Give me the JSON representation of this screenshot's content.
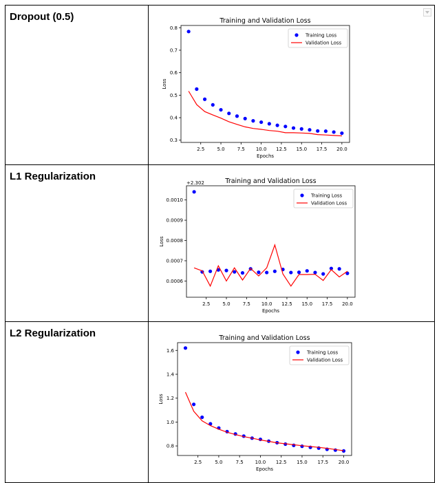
{
  "rows": [
    {
      "label": "Dropout (0.5)"
    },
    {
      "label": "L1 Regularization"
    },
    {
      "label": "L2 Regularization"
    }
  ],
  "chart_data": [
    {
      "type": "line",
      "title": "Training and Validation Loss",
      "xlabel": "Epochs",
      "ylabel": "Loss",
      "offset_label": "",
      "xlim": [
        0.05,
        20.95
      ],
      "ylim": [
        0.29,
        0.81
      ],
      "xticks": [
        2.5,
        5.0,
        7.5,
        10.0,
        12.5,
        15.0,
        17.5,
        20.0
      ],
      "xtick_labels": [
        "2.5",
        "5.0",
        "7.5",
        "10.0",
        "12.5",
        "15.0",
        "17.5",
        "20.0"
      ],
      "yticks": [
        0.3,
        0.4,
        0.5,
        0.6,
        0.7,
        0.8
      ],
      "ytick_labels": [
        "0.3",
        "0.4",
        "0.5",
        "0.6",
        "0.7",
        "0.8"
      ],
      "legend_position": "top-right",
      "series": [
        {
          "name": "Training Loss",
          "style": "dots",
          "color": "#0000ff",
          "x": [
            1,
            2,
            3,
            4,
            5,
            6,
            7,
            8,
            9,
            10,
            11,
            12,
            13,
            14,
            15,
            16,
            17,
            18,
            19,
            20
          ],
          "y": [
            0.783,
            0.527,
            0.482,
            0.457,
            0.435,
            0.419,
            0.407,
            0.396,
            0.386,
            0.38,
            0.373,
            0.366,
            0.361,
            0.354,
            0.35,
            0.346,
            0.341,
            0.34,
            0.336,
            0.331
          ]
        },
        {
          "name": "Validation Loss",
          "style": "line",
          "color": "#ff0000",
          "x": [
            1,
            2,
            3,
            4,
            5,
            6,
            7,
            8,
            9,
            10,
            11,
            12,
            13,
            14,
            15,
            16,
            17,
            18,
            19,
            20
          ],
          "y": [
            0.518,
            0.458,
            0.427,
            0.412,
            0.398,
            0.382,
            0.37,
            0.359,
            0.352,
            0.348,
            0.343,
            0.34,
            0.333,
            0.333,
            0.332,
            0.33,
            0.325,
            0.323,
            0.321,
            0.319
          ]
        }
      ]
    },
    {
      "type": "line",
      "title": "Training and Validation Loss",
      "xlabel": "Epochs",
      "ylabel": "Loss",
      "offset_label": "+2.302",
      "xlim": [
        0.05,
        20.95
      ],
      "ylim": [
        0.00052,
        0.00107
      ],
      "xticks": [
        2.5,
        5.0,
        7.5,
        10.0,
        12.5,
        15.0,
        17.5,
        20.0
      ],
      "xtick_labels": [
        "2.5",
        "5.0",
        "7.5",
        "10.0",
        "12.5",
        "15.0",
        "17.5",
        "20.0"
      ],
      "yticks": [
        0.0006,
        0.0007,
        0.0008,
        0.0009,
        0.001
      ],
      "ytick_labels": [
        "0.0006",
        "0.0007",
        "0.0008",
        "0.0009",
        "0.0010"
      ],
      "legend_position": "top-right",
      "series": [
        {
          "name": "Training Loss",
          "style": "dots",
          "color": "#0000ff",
          "x": [
            1,
            2,
            3,
            4,
            5,
            6,
            7,
            8,
            9,
            10,
            11,
            12,
            13,
            14,
            15,
            16,
            17,
            18,
            19,
            20
          ],
          "y": [
            0.00104,
            0.000645,
            0.000648,
            0.000655,
            0.000652,
            0.000645,
            0.00064,
            0.00066,
            0.000643,
            0.000642,
            0.000648,
            0.000657,
            0.000642,
            0.000643,
            0.00065,
            0.000642,
            0.000635,
            0.000662,
            0.00066,
            0.000638
          ]
        },
        {
          "name": "Validation Loss",
          "style": "line",
          "color": "#ff0000",
          "x": [
            1,
            2,
            3,
            4,
            5,
            6,
            7,
            8,
            9,
            10,
            11,
            12,
            13,
            14,
            15,
            16,
            17,
            18,
            19,
            20
          ],
          "y": [
            0.000665,
            0.00065,
            0.000575,
            0.000675,
            0.0006,
            0.000665,
            0.000605,
            0.000662,
            0.000625,
            0.000665,
            0.000778,
            0.000635,
            0.000575,
            0.000632,
            0.000632,
            0.000633,
            0.000603,
            0.000656,
            0.00062,
            0.000648
          ]
        }
      ]
    },
    {
      "type": "line",
      "title": "Training and Validation Loss",
      "xlabel": "Epochs",
      "ylabel": "Loss",
      "offset_label": "",
      "xlim": [
        0.05,
        20.95
      ],
      "ylim": [
        0.72,
        1.665
      ],
      "xticks": [
        2.5,
        5.0,
        7.5,
        10.0,
        12.5,
        15.0,
        17.5,
        20.0
      ],
      "xtick_labels": [
        "2.5",
        "5.0",
        "7.5",
        "10.0",
        "12.5",
        "15.0",
        "17.5",
        "20.0"
      ],
      "yticks": [
        0.8,
        1.0,
        1.2,
        1.4,
        1.6
      ],
      "ytick_labels": [
        "0.8",
        "1.0",
        "1.2",
        "1.4",
        "1.6"
      ],
      "legend_position": "top-right",
      "series": [
        {
          "name": "Training Loss",
          "style": "dots",
          "color": "#0000ff",
          "x": [
            1,
            2,
            3,
            4,
            5,
            6,
            7,
            8,
            9,
            10,
            11,
            12,
            13,
            14,
            15,
            16,
            17,
            18,
            19,
            20
          ],
          "y": [
            1.62,
            1.148,
            1.04,
            0.985,
            0.95,
            0.92,
            0.9,
            0.882,
            0.865,
            0.855,
            0.84,
            0.827,
            0.815,
            0.805,
            0.797,
            0.788,
            0.782,
            0.772,
            0.765,
            0.758
          ]
        },
        {
          "name": "Validation Loss",
          "style": "line",
          "color": "#ff0000",
          "x": [
            1,
            2,
            3,
            4,
            5,
            6,
            7,
            8,
            9,
            10,
            11,
            12,
            13,
            14,
            15,
            16,
            17,
            18,
            19,
            20
          ],
          "y": [
            1.25,
            1.09,
            1.01,
            0.97,
            0.94,
            0.915,
            0.895,
            0.878,
            0.865,
            0.85,
            0.838,
            0.826,
            0.818,
            0.81,
            0.802,
            0.795,
            0.788,
            0.78,
            0.77,
            0.76
          ]
        }
      ]
    }
  ]
}
